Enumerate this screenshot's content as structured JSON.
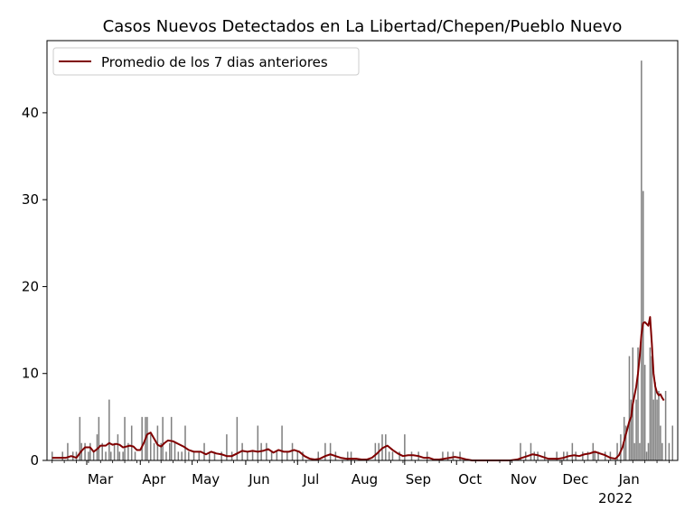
{
  "chart_data": {
    "type": "bar",
    "title": "Casos Nuevos Detectados en La Libertad/Chepen/Pueblo Nuevo",
    "xlabel": "",
    "ylabel": "",
    "ylim": [
      0,
      48.3
    ],
    "yticks": [
      0,
      10,
      20,
      30,
      40
    ],
    "x_start": "2021-02-06",
    "x_end": "2022-02-06",
    "xticks": [
      {
        "date": "2021-03-01",
        "label": "Mar",
        "sublabel": ""
      },
      {
        "date": "2021-04-01",
        "label": "Apr",
        "sublabel": ""
      },
      {
        "date": "2021-05-01",
        "label": "May",
        "sublabel": ""
      },
      {
        "date": "2021-06-01",
        "label": "Jun",
        "sublabel": ""
      },
      {
        "date": "2021-07-01",
        "label": "Jul",
        "sublabel": ""
      },
      {
        "date": "2021-08-01",
        "label": "Aug",
        "sublabel": ""
      },
      {
        "date": "2021-09-01",
        "label": "Sep",
        "sublabel": ""
      },
      {
        "date": "2021-10-01",
        "label": "Oct",
        "sublabel": ""
      },
      {
        "date": "2021-11-01",
        "label": "Nov",
        "sublabel": ""
      },
      {
        "date": "2021-12-01",
        "label": "Dec",
        "sublabel": ""
      },
      {
        "date": "2022-01-01",
        "label": "Jan",
        "sublabel": "2022"
      }
    ],
    "legend": {
      "position": "upper-left",
      "entries": [
        "Promedio de los 7 dias anteriores"
      ]
    },
    "grid": false,
    "series": [
      {
        "name": "",
        "kind": "bar",
        "color": "#808080",
        "points": [
          [
            "2021-02-09",
            1
          ],
          [
            "2021-02-15",
            1
          ],
          [
            "2021-02-18",
            2
          ],
          [
            "2021-02-21",
            1
          ],
          [
            "2021-02-23",
            1
          ],
          [
            "2021-02-25",
            5
          ],
          [
            "2021-02-26",
            2
          ],
          [
            "2021-02-28",
            2
          ],
          [
            "2021-03-02",
            1
          ],
          [
            "2021-03-03",
            2
          ],
          [
            "2021-03-05",
            1
          ],
          [
            "2021-03-07",
            3
          ],
          [
            "2021-03-08",
            5
          ],
          [
            "2021-03-10",
            2
          ],
          [
            "2021-03-12",
            1
          ],
          [
            "2021-03-14",
            7
          ],
          [
            "2021-03-15",
            1
          ],
          [
            "2021-03-17",
            2
          ],
          [
            "2021-03-19",
            3
          ],
          [
            "2021-03-20",
            1
          ],
          [
            "2021-03-22",
            1
          ],
          [
            "2021-03-23",
            5
          ],
          [
            "2021-03-25",
            2
          ],
          [
            "2021-03-27",
            4
          ],
          [
            "2021-03-29",
            1
          ],
          [
            "2021-04-02",
            5
          ],
          [
            "2021-04-04",
            5
          ],
          [
            "2021-04-05",
            5
          ],
          [
            "2021-04-07",
            3
          ],
          [
            "2021-04-09",
            2
          ],
          [
            "2021-04-11",
            4
          ],
          [
            "2021-04-13",
            2
          ],
          [
            "2021-04-14",
            5
          ],
          [
            "2021-04-16",
            1
          ],
          [
            "2021-04-18",
            2
          ],
          [
            "2021-04-19",
            5
          ],
          [
            "2021-04-21",
            2
          ],
          [
            "2021-04-23",
            1
          ],
          [
            "2021-04-25",
            1
          ],
          [
            "2021-04-27",
            4
          ],
          [
            "2021-04-29",
            1
          ],
          [
            "2021-05-02",
            1
          ],
          [
            "2021-05-05",
            1
          ],
          [
            "2021-05-08",
            2
          ],
          [
            "2021-05-11",
            1
          ],
          [
            "2021-05-14",
            1
          ],
          [
            "2021-05-18",
            1
          ],
          [
            "2021-05-21",
            3
          ],
          [
            "2021-05-24",
            1
          ],
          [
            "2021-05-27",
            5
          ],
          [
            "2021-05-30",
            2
          ],
          [
            "2021-06-02",
            1
          ],
          [
            "2021-06-05",
            1
          ],
          [
            "2021-06-08",
            4
          ],
          [
            "2021-06-10",
            2
          ],
          [
            "2021-06-13",
            2
          ],
          [
            "2021-06-16",
            1
          ],
          [
            "2021-06-19",
            1
          ],
          [
            "2021-06-22",
            4
          ],
          [
            "2021-06-25",
            1
          ],
          [
            "2021-06-28",
            2
          ],
          [
            "2021-07-01",
            1
          ],
          [
            "2021-07-04",
            1
          ],
          [
            "2021-07-13",
            1
          ],
          [
            "2021-07-17",
            2
          ],
          [
            "2021-07-20",
            2
          ],
          [
            "2021-07-23",
            1
          ],
          [
            "2021-07-30",
            1
          ],
          [
            "2021-08-01",
            1
          ],
          [
            "2021-08-15",
            2
          ],
          [
            "2021-08-17",
            2
          ],
          [
            "2021-08-19",
            3
          ],
          [
            "2021-08-21",
            3
          ],
          [
            "2021-08-23",
            1
          ],
          [
            "2021-08-25",
            1
          ],
          [
            "2021-08-29",
            1
          ],
          [
            "2021-09-01",
            3
          ],
          [
            "2021-09-05",
            1
          ],
          [
            "2021-09-09",
            1
          ],
          [
            "2021-09-14",
            1
          ],
          [
            "2021-09-23",
            1
          ],
          [
            "2021-09-26",
            1
          ],
          [
            "2021-09-29",
            1
          ],
          [
            "2021-10-03",
            1
          ],
          [
            "2021-11-07",
            2
          ],
          [
            "2021-11-10",
            1
          ],
          [
            "2021-11-13",
            2
          ],
          [
            "2021-11-15",
            1
          ],
          [
            "2021-11-17",
            1
          ],
          [
            "2021-11-21",
            1
          ],
          [
            "2021-11-28",
            1
          ],
          [
            "2021-12-02",
            1
          ],
          [
            "2021-12-04",
            1
          ],
          [
            "2021-12-07",
            2
          ],
          [
            "2021-12-09",
            1
          ],
          [
            "2021-12-13",
            1
          ],
          [
            "2021-12-16",
            1
          ],
          [
            "2021-12-19",
            2
          ],
          [
            "2021-12-20",
            1
          ],
          [
            "2021-12-22",
            1
          ],
          [
            "2021-12-26",
            1
          ],
          [
            "2021-12-29",
            1
          ],
          [
            "2022-01-02",
            2
          ],
          [
            "2022-01-04",
            3
          ],
          [
            "2022-01-06",
            5
          ],
          [
            "2022-01-07",
            4
          ],
          [
            "2022-01-09",
            12
          ],
          [
            "2022-01-10",
            7
          ],
          [
            "2022-01-11",
            13
          ],
          [
            "2022-01-12",
            2
          ],
          [
            "2022-01-13",
            7
          ],
          [
            "2022-01-14",
            13
          ],
          [
            "2022-01-15",
            2
          ],
          [
            "2022-01-16",
            46
          ],
          [
            "2022-01-17",
            31
          ],
          [
            "2022-01-18",
            11
          ],
          [
            "2022-01-19",
            1
          ],
          [
            "2022-01-20",
            2
          ],
          [
            "2022-01-21",
            13
          ],
          [
            "2022-01-22",
            12
          ],
          [
            "2022-01-23",
            7
          ],
          [
            "2022-01-24",
            9
          ],
          [
            "2022-01-25",
            7
          ],
          [
            "2022-01-26",
            8
          ],
          [
            "2022-01-27",
            4
          ],
          [
            "2022-01-28",
            2
          ],
          [
            "2022-01-30",
            8
          ],
          [
            "2022-02-01",
            2
          ],
          [
            "2022-02-03",
            4
          ]
        ]
      },
      {
        "name": "Promedio de los 7 dias anteriores",
        "kind": "line",
        "color": "#800000",
        "points": [
          [
            "2021-02-09",
            0.3
          ],
          [
            "2021-02-13",
            0.3
          ],
          [
            "2021-02-17",
            0.3
          ],
          [
            "2021-02-20",
            0.5
          ],
          [
            "2021-02-23",
            0.3
          ],
          [
            "2021-02-26",
            1.1
          ],
          [
            "2021-02-28",
            1.5
          ],
          [
            "2021-03-03",
            1.5
          ],
          [
            "2021-03-05",
            1.0
          ],
          [
            "2021-03-07",
            1.3
          ],
          [
            "2021-03-09",
            1.7
          ],
          [
            "2021-03-12",
            1.7
          ],
          [
            "2021-03-14",
            2.0
          ],
          [
            "2021-03-16",
            1.8
          ],
          [
            "2021-03-18",
            1.9
          ],
          [
            "2021-03-20",
            1.8
          ],
          [
            "2021-03-22",
            1.5
          ],
          [
            "2021-03-24",
            1.6
          ],
          [
            "2021-03-26",
            1.7
          ],
          [
            "2021-03-28",
            1.6
          ],
          [
            "2021-03-30",
            1.2
          ],
          [
            "2021-04-01",
            1.2
          ],
          [
            "2021-04-03",
            2.0
          ],
          [
            "2021-04-05",
            3.0
          ],
          [
            "2021-04-07",
            3.2
          ],
          [
            "2021-04-09",
            2.5
          ],
          [
            "2021-04-11",
            1.8
          ],
          [
            "2021-04-13",
            1.6
          ],
          [
            "2021-04-15",
            2.0
          ],
          [
            "2021-04-17",
            2.3
          ],
          [
            "2021-04-20",
            2.2
          ],
          [
            "2021-04-23",
            1.9
          ],
          [
            "2021-04-26",
            1.6
          ],
          [
            "2021-04-29",
            1.2
          ],
          [
            "2021-05-02",
            1.0
          ],
          [
            "2021-05-06",
            1.0
          ],
          [
            "2021-05-09",
            0.7
          ],
          [
            "2021-05-12",
            1.0
          ],
          [
            "2021-05-15",
            0.8
          ],
          [
            "2021-05-18",
            0.7
          ],
          [
            "2021-05-21",
            0.5
          ],
          [
            "2021-05-24",
            0.5
          ],
          [
            "2021-05-27",
            0.8
          ],
          [
            "2021-05-30",
            1.1
          ],
          [
            "2021-06-02",
            1.0
          ],
          [
            "2021-06-05",
            1.1
          ],
          [
            "2021-06-08",
            1.0
          ],
          [
            "2021-06-11",
            1.1
          ],
          [
            "2021-06-14",
            1.3
          ],
          [
            "2021-06-17",
            0.9
          ],
          [
            "2021-06-20",
            1.2
          ],
          [
            "2021-06-23",
            1.0
          ],
          [
            "2021-06-26",
            1.0
          ],
          [
            "2021-06-29",
            1.2
          ],
          [
            "2021-07-02",
            1.0
          ],
          [
            "2021-07-05",
            0.5
          ],
          [
            "2021-07-08",
            0.2
          ],
          [
            "2021-07-11",
            0.1
          ],
          [
            "2021-07-14",
            0.2
          ],
          [
            "2021-07-17",
            0.5
          ],
          [
            "2021-07-20",
            0.7
          ],
          [
            "2021-07-23",
            0.5
          ],
          [
            "2021-07-26",
            0.3
          ],
          [
            "2021-07-29",
            0.2
          ],
          [
            "2021-08-01",
            0.2
          ],
          [
            "2021-08-04",
            0.2
          ],
          [
            "2021-08-07",
            0.1
          ],
          [
            "2021-08-10",
            0.1
          ],
          [
            "2021-08-13",
            0.3
          ],
          [
            "2021-08-16",
            0.8
          ],
          [
            "2021-08-19",
            1.4
          ],
          [
            "2021-08-22",
            1.7
          ],
          [
            "2021-08-25",
            1.2
          ],
          [
            "2021-08-28",
            0.8
          ],
          [
            "2021-08-31",
            0.5
          ],
          [
            "2021-09-03",
            0.6
          ],
          [
            "2021-09-06",
            0.6
          ],
          [
            "2021-09-09",
            0.5
          ],
          [
            "2021-09-12",
            0.3
          ],
          [
            "2021-09-15",
            0.3
          ],
          [
            "2021-09-18",
            0.1
          ],
          [
            "2021-09-21",
            0.1
          ],
          [
            "2021-09-24",
            0.2
          ],
          [
            "2021-09-27",
            0.3
          ],
          [
            "2021-09-30",
            0.4
          ],
          [
            "2021-10-03",
            0.3
          ],
          [
            "2021-10-07",
            0.1
          ],
          [
            "2021-10-10",
            0.0
          ],
          [
            "2021-10-20",
            0.0
          ],
          [
            "2021-11-01",
            0.0
          ],
          [
            "2021-11-05",
            0.1
          ],
          [
            "2021-11-08",
            0.3
          ],
          [
            "2021-11-11",
            0.5
          ],
          [
            "2021-11-14",
            0.7
          ],
          [
            "2021-11-17",
            0.6
          ],
          [
            "2021-11-20",
            0.4
          ],
          [
            "2021-11-23",
            0.2
          ],
          [
            "2021-11-26",
            0.2
          ],
          [
            "2021-11-29",
            0.2
          ],
          [
            "2021-12-02",
            0.3
          ],
          [
            "2021-12-05",
            0.5
          ],
          [
            "2021-12-08",
            0.6
          ],
          [
            "2021-12-11",
            0.5
          ],
          [
            "2021-12-14",
            0.7
          ],
          [
            "2021-12-17",
            0.8
          ],
          [
            "2021-12-20",
            1.0
          ],
          [
            "2021-12-23",
            0.8
          ],
          [
            "2021-12-26",
            0.6
          ],
          [
            "2021-12-29",
            0.3
          ],
          [
            "2022-01-01",
            0.2
          ],
          [
            "2022-01-03",
            0.6
          ],
          [
            "2022-01-05",
            1.5
          ],
          [
            "2022-01-07",
            3.0
          ],
          [
            "2022-01-09",
            4.5
          ],
          [
            "2022-01-10",
            5.0
          ],
          [
            "2022-01-11",
            6.5
          ],
          [
            "2022-01-12",
            7.5
          ],
          [
            "2022-01-13",
            8.5
          ],
          [
            "2022-01-14",
            10.0
          ],
          [
            "2022-01-15",
            12.0
          ],
          [
            "2022-01-16",
            14.5
          ],
          [
            "2022-01-17",
            15.8
          ],
          [
            "2022-01-18",
            15.9
          ],
          [
            "2022-01-19",
            15.7
          ],
          [
            "2022-01-20",
            15.5
          ],
          [
            "2022-01-21",
            16.5
          ],
          [
            "2022-01-22",
            13.5
          ],
          [
            "2022-01-23",
            10.0
          ],
          [
            "2022-01-24",
            8.5
          ],
          [
            "2022-01-25",
            7.8
          ],
          [
            "2022-01-26",
            7.5
          ],
          [
            "2022-01-27",
            7.6
          ],
          [
            "2022-01-28",
            7.2
          ],
          [
            "2022-01-29",
            6.9
          ]
        ]
      }
    ]
  }
}
